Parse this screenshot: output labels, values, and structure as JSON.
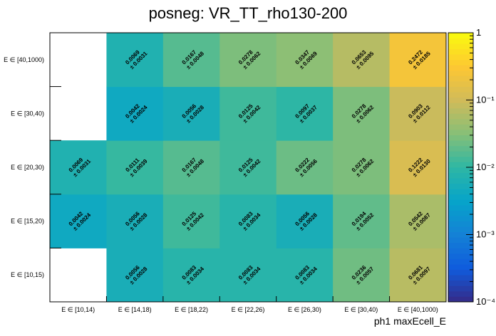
{
  "chart_data": {
    "type": "heatmap",
    "title": "posneg: VR_TT_rho130-200",
    "xlabel": "ph1 maxEcell_E",
    "ylabel": "",
    "x_categories": [
      "E ∈ [10,14)",
      "E ∈ [14,18)",
      "E ∈ [18,22)",
      "E ∈ [22,26)",
      "E ∈ [26,30)",
      "E ∈ [30,40)",
      "E ∈ [40,1000)"
    ],
    "y_categories": [
      "E ∈ [10,15)",
      "E ∈ [15,20)",
      "E ∈ [20,30)",
      "E ∈ [30,40)",
      "E ∈ [40,1000)"
    ],
    "zscale": "log",
    "zlim": [
      0.0001,
      1
    ],
    "z_ticks": [
      {
        "value": 1,
        "label": "1"
      },
      {
        "value": 0.1,
        "label": "10⁻¹"
      },
      {
        "value": 0.01,
        "label": "10⁻²"
      },
      {
        "value": 0.001,
        "label": "10⁻³"
      },
      {
        "value": 0.0001,
        "label": "10⁻⁴"
      }
    ],
    "palette": [
      "#352a87",
      "#0f5cdd",
      "#1481d6",
      "#06a4ca",
      "#2eb7a4",
      "#87bf77",
      "#d1bb59",
      "#fec832",
      "#f9fb0e"
    ],
    "cells": [
      {
        "x": 1,
        "y": 0,
        "value": 0.0056,
        "value_label": "0.0056",
        "error_label": "± 0.0028"
      },
      {
        "x": 2,
        "y": 0,
        "value": 0.0083,
        "value_label": "0.0083",
        "error_label": "± 0.0034"
      },
      {
        "x": 3,
        "y": 0,
        "value": 0.0083,
        "value_label": "0.0083",
        "error_label": "± 0.0034"
      },
      {
        "x": 4,
        "y": 0,
        "value": 0.0083,
        "value_label": "0.0083",
        "error_label": "± 0.0034"
      },
      {
        "x": 5,
        "y": 0,
        "value": 0.0236,
        "value_label": "0.0236",
        "error_label": "± 0.0057"
      },
      {
        "x": 6,
        "y": 0,
        "value": 0.0681,
        "value_label": "0.0681",
        "error_label": "± 0.0097"
      },
      {
        "x": 0,
        "y": 1,
        "value": 0.0042,
        "value_label": "0.0042",
        "error_label": "± 0.0024"
      },
      {
        "x": 1,
        "y": 1,
        "value": 0.0056,
        "value_label": "0.0056",
        "error_label": "± 0.0028"
      },
      {
        "x": 2,
        "y": 1,
        "value": 0.0125,
        "value_label": "0.0125",
        "error_label": "± 0.0042"
      },
      {
        "x": 3,
        "y": 1,
        "value": 0.0083,
        "value_label": "0.0083",
        "error_label": "± 0.0034"
      },
      {
        "x": 4,
        "y": 1,
        "value": 0.0056,
        "value_label": "0.0056",
        "error_label": "± 0.0028"
      },
      {
        "x": 5,
        "y": 1,
        "value": 0.0194,
        "value_label": "0.0194",
        "error_label": "± 0.0052"
      },
      {
        "x": 6,
        "y": 1,
        "value": 0.0542,
        "value_label": "0.0542",
        "error_label": "± 0.0087"
      },
      {
        "x": 0,
        "y": 2,
        "value": 0.0069,
        "value_label": "0.0069",
        "error_label": "± 0.0031"
      },
      {
        "x": 1,
        "y": 2,
        "value": 0.0111,
        "value_label": "0.0111",
        "error_label": "± 0.0039"
      },
      {
        "x": 2,
        "y": 2,
        "value": 0.0167,
        "value_label": "0.0167",
        "error_label": "± 0.0048"
      },
      {
        "x": 3,
        "y": 2,
        "value": 0.0125,
        "value_label": "0.0125",
        "error_label": "± 0.0042"
      },
      {
        "x": 4,
        "y": 2,
        "value": 0.0222,
        "value_label": "0.0222",
        "error_label": "± 0.0056"
      },
      {
        "x": 5,
        "y": 2,
        "value": 0.0278,
        "value_label": "0.0278",
        "error_label": "± 0.0062"
      },
      {
        "x": 6,
        "y": 2,
        "value": 0.1222,
        "value_label": "0.1222",
        "error_label": "± 0.0130"
      },
      {
        "x": 1,
        "y": 3,
        "value": 0.0042,
        "value_label": "0.0042",
        "error_label": "± 0.0024"
      },
      {
        "x": 2,
        "y": 3,
        "value": 0.0056,
        "value_label": "0.0056",
        "error_label": "± 0.0028"
      },
      {
        "x": 3,
        "y": 3,
        "value": 0.0125,
        "value_label": "0.0125",
        "error_label": "± 0.0042"
      },
      {
        "x": 4,
        "y": 3,
        "value": 0.0097,
        "value_label": "0.0097",
        "error_label": "± 0.0037"
      },
      {
        "x": 5,
        "y": 3,
        "value": 0.0278,
        "value_label": "0.0278",
        "error_label": "± 0.0062"
      },
      {
        "x": 6,
        "y": 3,
        "value": 0.0903,
        "value_label": "0.0903",
        "error_label": "± 0.0112"
      },
      {
        "x": 1,
        "y": 4,
        "value": 0.0069,
        "value_label": "0.0069",
        "error_label": "± 0.0031"
      },
      {
        "x": 2,
        "y": 4,
        "value": 0.0167,
        "value_label": "0.0167",
        "error_label": "± 0.0048"
      },
      {
        "x": 3,
        "y": 4,
        "value": 0.0278,
        "value_label": "0.0278",
        "error_label": "± 0.0062"
      },
      {
        "x": 4,
        "y": 4,
        "value": 0.0347,
        "value_label": "0.0347",
        "error_label": "± 0.0069"
      },
      {
        "x": 5,
        "y": 4,
        "value": 0.0653,
        "value_label": "0.0653",
        "error_label": "± 0.0095"
      },
      {
        "x": 6,
        "y": 4,
        "value": 0.2472,
        "value_label": "0.2472",
        "error_label": "± 0.0185"
      }
    ]
  }
}
